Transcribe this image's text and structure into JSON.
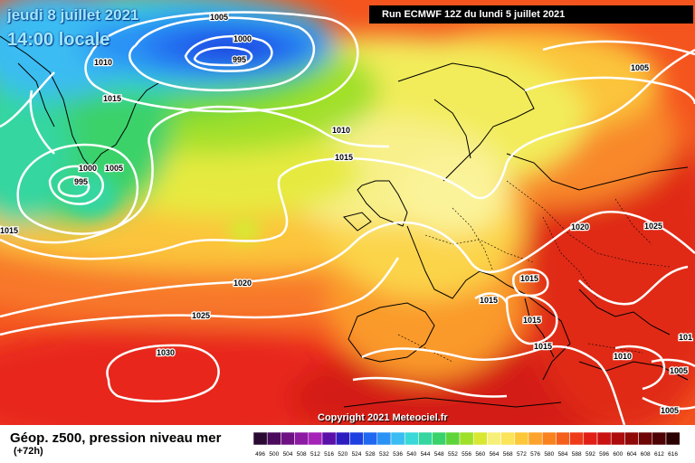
{
  "header": {
    "date": "jeudi 8 juillet 2021",
    "time": "14:00 locale",
    "run": "Run ECMWF 12Z du lundi 5 juillet 2021"
  },
  "footer": {
    "copyright": "Copyright 2021 Meteociel.fr",
    "title": "Géop. z500, pression niveau mer",
    "forecast_step": "(+72h)"
  },
  "isobar_labels": [
    {
      "text": "1005",
      "place": "top-center"
    },
    {
      "text": "1000",
      "place": "low-center"
    },
    {
      "text": "995",
      "place": "low-center-core"
    },
    {
      "text": "1010",
      "place": "north-atlantic-west"
    },
    {
      "text": "1015",
      "place": "north-atlantic-west-2"
    },
    {
      "text": "1005",
      "place": "greenland-south"
    },
    {
      "text": "1000",
      "place": "greenland-south-2"
    },
    {
      "text": "995",
      "place": "greenland-south-core"
    },
    {
      "text": "1015",
      "place": "west-edge"
    },
    {
      "text": "1010",
      "place": "uk-north"
    },
    {
      "text": "1015",
      "place": "uk"
    },
    {
      "text": "1005",
      "place": "scandinavia-east"
    },
    {
      "text": "1020",
      "place": "atlantic"
    },
    {
      "text": "1025",
      "place": "azores"
    },
    {
      "text": "1030",
      "place": "azores-high"
    },
    {
      "text": "1020",
      "place": "eastern-europe"
    },
    {
      "text": "1025",
      "place": "russia"
    },
    {
      "text": "1015",
      "place": "alps"
    },
    {
      "text": "1015",
      "place": "france-south"
    },
    {
      "text": "1015",
      "place": "italy"
    },
    {
      "text": "1015",
      "place": "italy-south"
    },
    {
      "text": "1010",
      "place": "balkans"
    },
    {
      "text": "1005",
      "place": "turkey"
    },
    {
      "text": "1005",
      "place": "middle-east"
    },
    {
      "text": "101",
      "place": "east-edge"
    }
  ],
  "colorbar": {
    "values": [
      "496",
      "500",
      "504",
      "508",
      "512",
      "516",
      "520",
      "524",
      "528",
      "532",
      "536",
      "540",
      "544",
      "548",
      "552",
      "556",
      "560",
      "564",
      "568",
      "572",
      "576",
      "580",
      "584",
      "588",
      "592",
      "596",
      "600",
      "604",
      "608",
      "612",
      "616"
    ],
    "colors": [
      "#2a0a33",
      "#4b0a5c",
      "#6e1283",
      "#8d1aa3",
      "#a524b8",
      "#5a0fa8",
      "#2d1dbf",
      "#1f40e0",
      "#2068f0",
      "#2b92f5",
      "#3bbcf2",
      "#3ad8d8",
      "#35d6a0",
      "#3ad26a",
      "#5ed43a",
      "#9ee02a",
      "#d8e832",
      "#f6f07a",
      "#fbe35a",
      "#fcc83a",
      "#fba32c",
      "#f9821f",
      "#f45f1c",
      "#ee3c1a",
      "#e11f16",
      "#c91212",
      "#ad0c0c",
      "#8f0909",
      "#6e0606",
      "#4d0303",
      "#2a0000"
    ]
  }
}
